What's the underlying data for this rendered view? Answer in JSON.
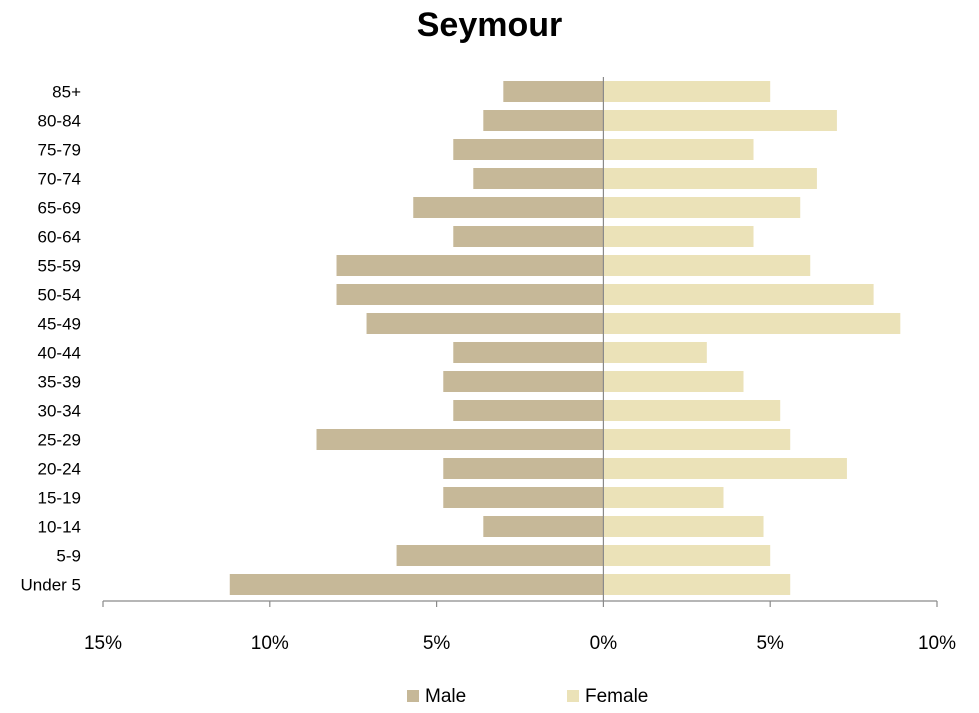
{
  "chart_data": {
    "type": "bar",
    "orientation": "horizontal",
    "title": "Seymour",
    "categories": [
      "85+",
      "80-84",
      "75-79",
      "70-74",
      "65-69",
      "60-64",
      "55-59",
      "50-54",
      "45-49",
      "40-44",
      "35-39",
      "30-34",
      "25-29",
      "20-24",
      "15-19",
      "10-14",
      "5-9",
      "Under 5"
    ],
    "series": [
      {
        "name": "Male",
        "color": "#c6b898",
        "values": [
          -3.0,
          -3.6,
          -4.5,
          -3.9,
          -5.7,
          -4.5,
          -8.0,
          -8.0,
          -7.1,
          -4.5,
          -4.8,
          -4.5,
          -8.6,
          -4.8,
          -4.8,
          -3.6,
          -6.2,
          -11.2
        ]
      },
      {
        "name": "Female",
        "color": "#ebe2b8",
        "values": [
          5.0,
          7.0,
          4.5,
          6.4,
          5.9,
          4.5,
          6.2,
          8.1,
          8.9,
          3.1,
          4.2,
          5.3,
          5.6,
          7.3,
          3.6,
          4.8,
          5.0,
          5.6
        ]
      }
    ],
    "xlim": [
      -15,
      10
    ],
    "xticks": [
      -15,
      -10,
      -5,
      0,
      5,
      10
    ],
    "xtick_labels": [
      "15%",
      "10%",
      "5%",
      "0%",
      "5%",
      "10%"
    ],
    "xlabel": "",
    "ylabel": "",
    "grid": false,
    "legend_position": "bottom"
  }
}
